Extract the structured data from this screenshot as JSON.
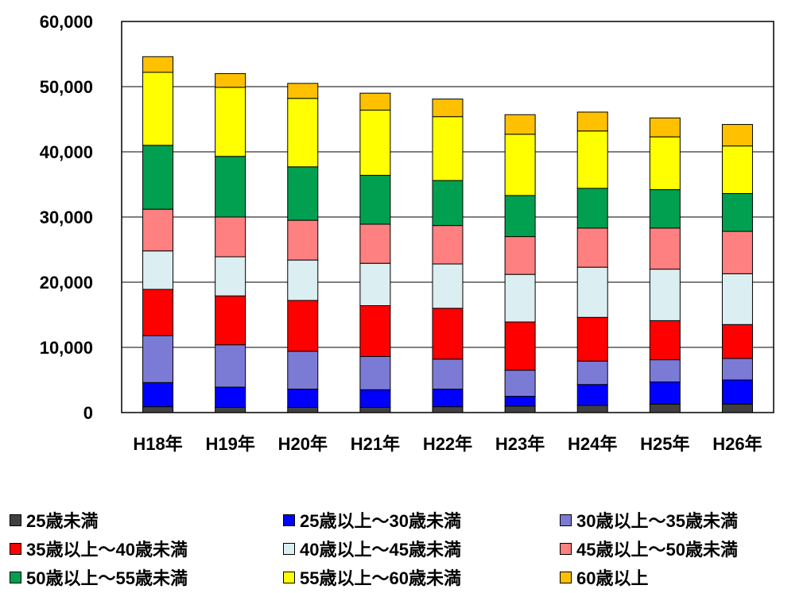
{
  "chart_data": {
    "type": "bar",
    "stacked": true,
    "categories": [
      "H18年",
      "H19年",
      "H20年",
      "H21年",
      "H22年",
      "H23年",
      "H24年",
      "H25年",
      "H26年"
    ],
    "ylim": [
      0,
      60000
    ],
    "y_ticks": [
      "0",
      "10,000",
      "20,000",
      "30,000",
      "40,000",
      "50,000",
      "60,000"
    ],
    "y_tick_values": [
      0,
      10000,
      20000,
      30000,
      40000,
      50000,
      60000
    ],
    "grid": true,
    "legend_position": "bottom",
    "series": [
      {
        "name": "25歳未満",
        "color": "#404040",
        "values": [
          900,
          800,
          800,
          800,
          900,
          1000,
          1100,
          1300,
          1300
        ]
      },
      {
        "name": "25歳以上～30歳未満",
        "color": "#0000ff",
        "values": [
          3700,
          3100,
          2800,
          2700,
          2700,
          1500,
          3200,
          3400,
          3700
        ]
      },
      {
        "name": "30歳以上～35歳未満",
        "color": "#7b7bd6",
        "values": [
          7200,
          6500,
          5800,
          5100,
          4600,
          4000,
          3600,
          3400,
          3300
        ]
      },
      {
        "name": "35歳以上～40歳未満",
        "color": "#ff0000",
        "values": [
          7100,
          7500,
          7800,
          7800,
          7800,
          7400,
          6700,
          6000,
          5200
        ]
      },
      {
        "name": "40歳以上～45歳未満",
        "color": "#dbeef2",
        "values": [
          5900,
          6000,
          6200,
          6500,
          6800,
          7300,
          7700,
          7900,
          7800
        ]
      },
      {
        "name": "45歳以上～50歳未満",
        "color": "#ff8080",
        "values": [
          6400,
          6100,
          6100,
          6000,
          5900,
          5800,
          6000,
          6300,
          6500
        ]
      },
      {
        "name": "50歳以上～55歳未満",
        "color": "#00a050",
        "values": [
          9800,
          9300,
          8200,
          7500,
          6900,
          6300,
          6100,
          5900,
          5800
        ]
      },
      {
        "name": "55歳以上～60歳未満",
        "color": "#ffff00",
        "values": [
          11200,
          10600,
          10500,
          10000,
          9800,
          9400,
          8800,
          8100,
          7300
        ]
      },
      {
        "name": "60歳以上",
        "color": "#ffc000",
        "values": [
          2400,
          2100,
          2300,
          2600,
          2700,
          3000,
          2900,
          2900,
          3300
        ]
      }
    ]
  }
}
